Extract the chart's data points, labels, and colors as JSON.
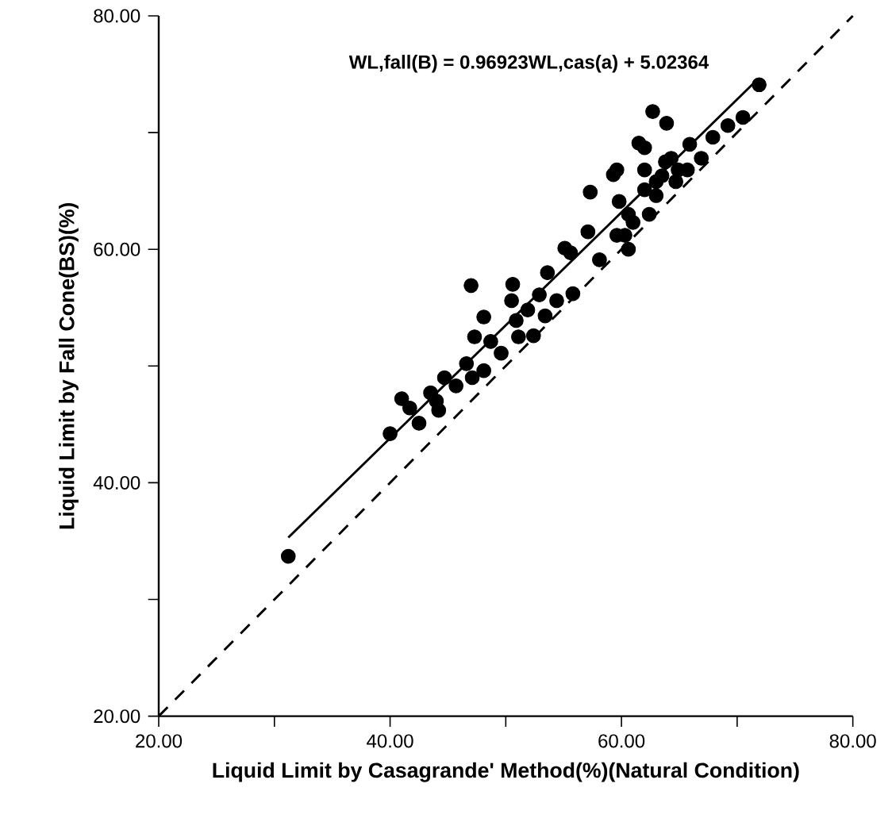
{
  "chart_data": {
    "type": "scatter",
    "xlabel": "Liquid Limit by Casagrande' Method(%)(Natural Condition)",
    "ylabel": "Liquid Limit by Fall Cone(BS)(%)",
    "annotations": [
      "WL,fall(B) = 0.96923WL,cas(a) + 5.02364"
    ],
    "xlim": [
      20,
      80
    ],
    "ylim": [
      20,
      80
    ],
    "xticks": [
      {
        "value": 20,
        "label": "20.00"
      },
      {
        "value": 30,
        "label": null
      },
      {
        "value": 40,
        "label": "40.00"
      },
      {
        "value": 50,
        "label": null
      },
      {
        "value": 60,
        "label": "60.00"
      },
      {
        "value": 70,
        "label": null
      },
      {
        "value": 80,
        "label": "80.00"
      }
    ],
    "yticks": [
      {
        "value": 20,
        "label": "20.00"
      },
      {
        "value": 30,
        "label": null
      },
      {
        "value": 40,
        "label": "40.00"
      },
      {
        "value": 50,
        "label": null
      },
      {
        "value": 60,
        "label": "60.00"
      },
      {
        "value": 70,
        "label": null
      },
      {
        "value": 80,
        "label": "80.00"
      }
    ],
    "series": [
      {
        "type": "scatter",
        "marker": "circle",
        "color": "#000000",
        "x": [
          31.2,
          40.0,
          41.0,
          41.7,
          42.5,
          43.5,
          44.2,
          44.0,
          44.7,
          45.7,
          46.6,
          47.1,
          48.1,
          47.0,
          47.3,
          48.1,
          48.7,
          49.6,
          50.6,
          50.5,
          50.9,
          51.1,
          52.4,
          51.9,
          52.9,
          53.4,
          53.6,
          54.4,
          55.8,
          55.1,
          55.6,
          57.1,
          57.3,
          58.1,
          59.3,
          59.6,
          59.8,
          60.6,
          59.6,
          60.3,
          60.6,
          61.5,
          62.0,
          61.0,
          62.4,
          62.7,
          63.9,
          62.0,
          62.0,
          63.0,
          63.5,
          63.8,
          64.3,
          64.7,
          64.9,
          65.7,
          65.9,
          66.9,
          67.9,
          69.2,
          70.5,
          71.9,
          63.0
        ],
        "values": [
          33.7,
          44.2,
          47.2,
          46.4,
          45.1,
          47.7,
          46.2,
          47.0,
          49.0,
          48.3,
          50.2,
          49.0,
          49.6,
          56.9,
          52.5,
          54.2,
          52.1,
          51.1,
          57.0,
          55.6,
          53.9,
          52.5,
          52.6,
          54.8,
          56.1,
          54.3,
          58.0,
          55.6,
          56.2,
          60.1,
          59.7,
          61.5,
          64.9,
          59.1,
          66.4,
          66.8,
          64.1,
          63.0,
          61.2,
          61.2,
          60.0,
          69.1,
          68.7,
          62.3,
          63.0,
          71.8,
          70.8,
          66.8,
          65.1,
          64.6,
          66.3,
          67.5,
          67.8,
          65.8,
          66.8,
          66.8,
          69.0,
          67.8,
          69.6,
          70.6,
          71.3,
          74.1,
          65.8
        ]
      },
      {
        "type": "line",
        "marker": "none",
        "line_style": "solid",
        "color": "#000000",
        "x": [
          31.2,
          71.4
        ],
        "values": [
          35.3,
          74.2
        ]
      },
      {
        "type": "line",
        "marker": "none",
        "line_style": "dashed",
        "color": "#000000",
        "x": [
          20,
          80
        ],
        "values": [
          20,
          80
        ]
      }
    ]
  }
}
